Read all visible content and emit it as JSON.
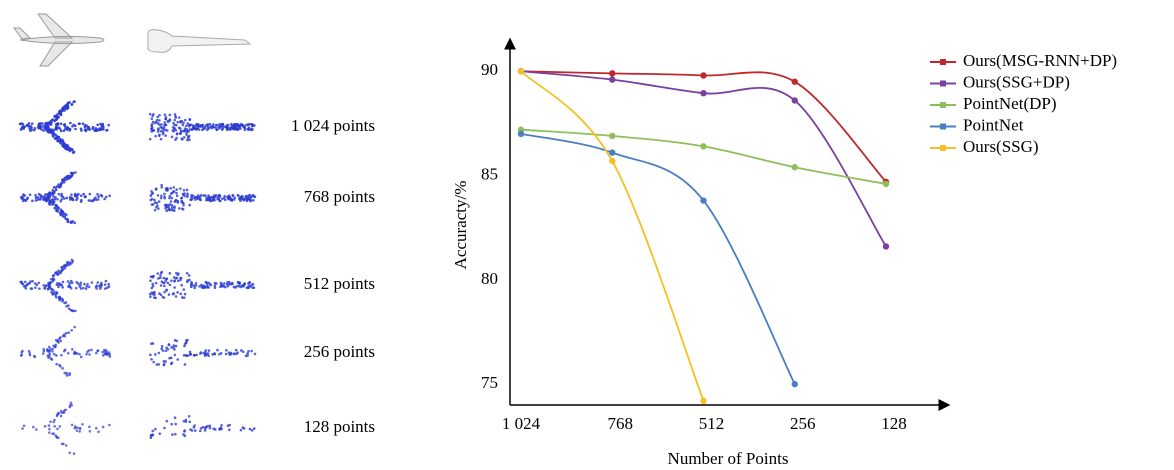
{
  "point_cloud_labels": [
    "1 024 points",
    "768 points",
    "512 points",
    "256 points",
    "128 points"
  ],
  "chart_data": {
    "type": "line",
    "x_label": "Number of Points",
    "y_label": "Accuracty/%",
    "categories": [
      "1 024",
      "768",
      "512",
      "256",
      "128"
    ],
    "series": [
      {
        "name": "Ours(MSG-RNN+DP)",
        "color": "#c0282d",
        "values": [
          90.0,
          89.9,
          89.8,
          89.5,
          84.7
        ]
      },
      {
        "name": "Ours(SSG+DP)",
        "color": "#7b3f9e",
        "values": [
          90.0,
          89.6,
          88.95,
          88.6,
          81.6
        ]
      },
      {
        "name": "PointNet(DP)",
        "color": "#8fbf5a",
        "values": [
          87.2,
          86.9,
          86.4,
          85.4,
          84.6
        ]
      },
      {
        "name": "PointNet",
        "color": "#4a7fc1",
        "values": [
          87.0,
          86.1,
          83.8,
          75.0,
          null
        ]
      },
      {
        "name": "Ours(SSG)",
        "color": "#f5c023",
        "values": [
          90.0,
          85.7,
          74.2,
          null,
          null
        ]
      }
    ],
    "ylim": [
      74,
      91.5
    ],
    "yticks": [
      75,
      80,
      85,
      90
    ],
    "grid": false,
    "legend": "right"
  }
}
